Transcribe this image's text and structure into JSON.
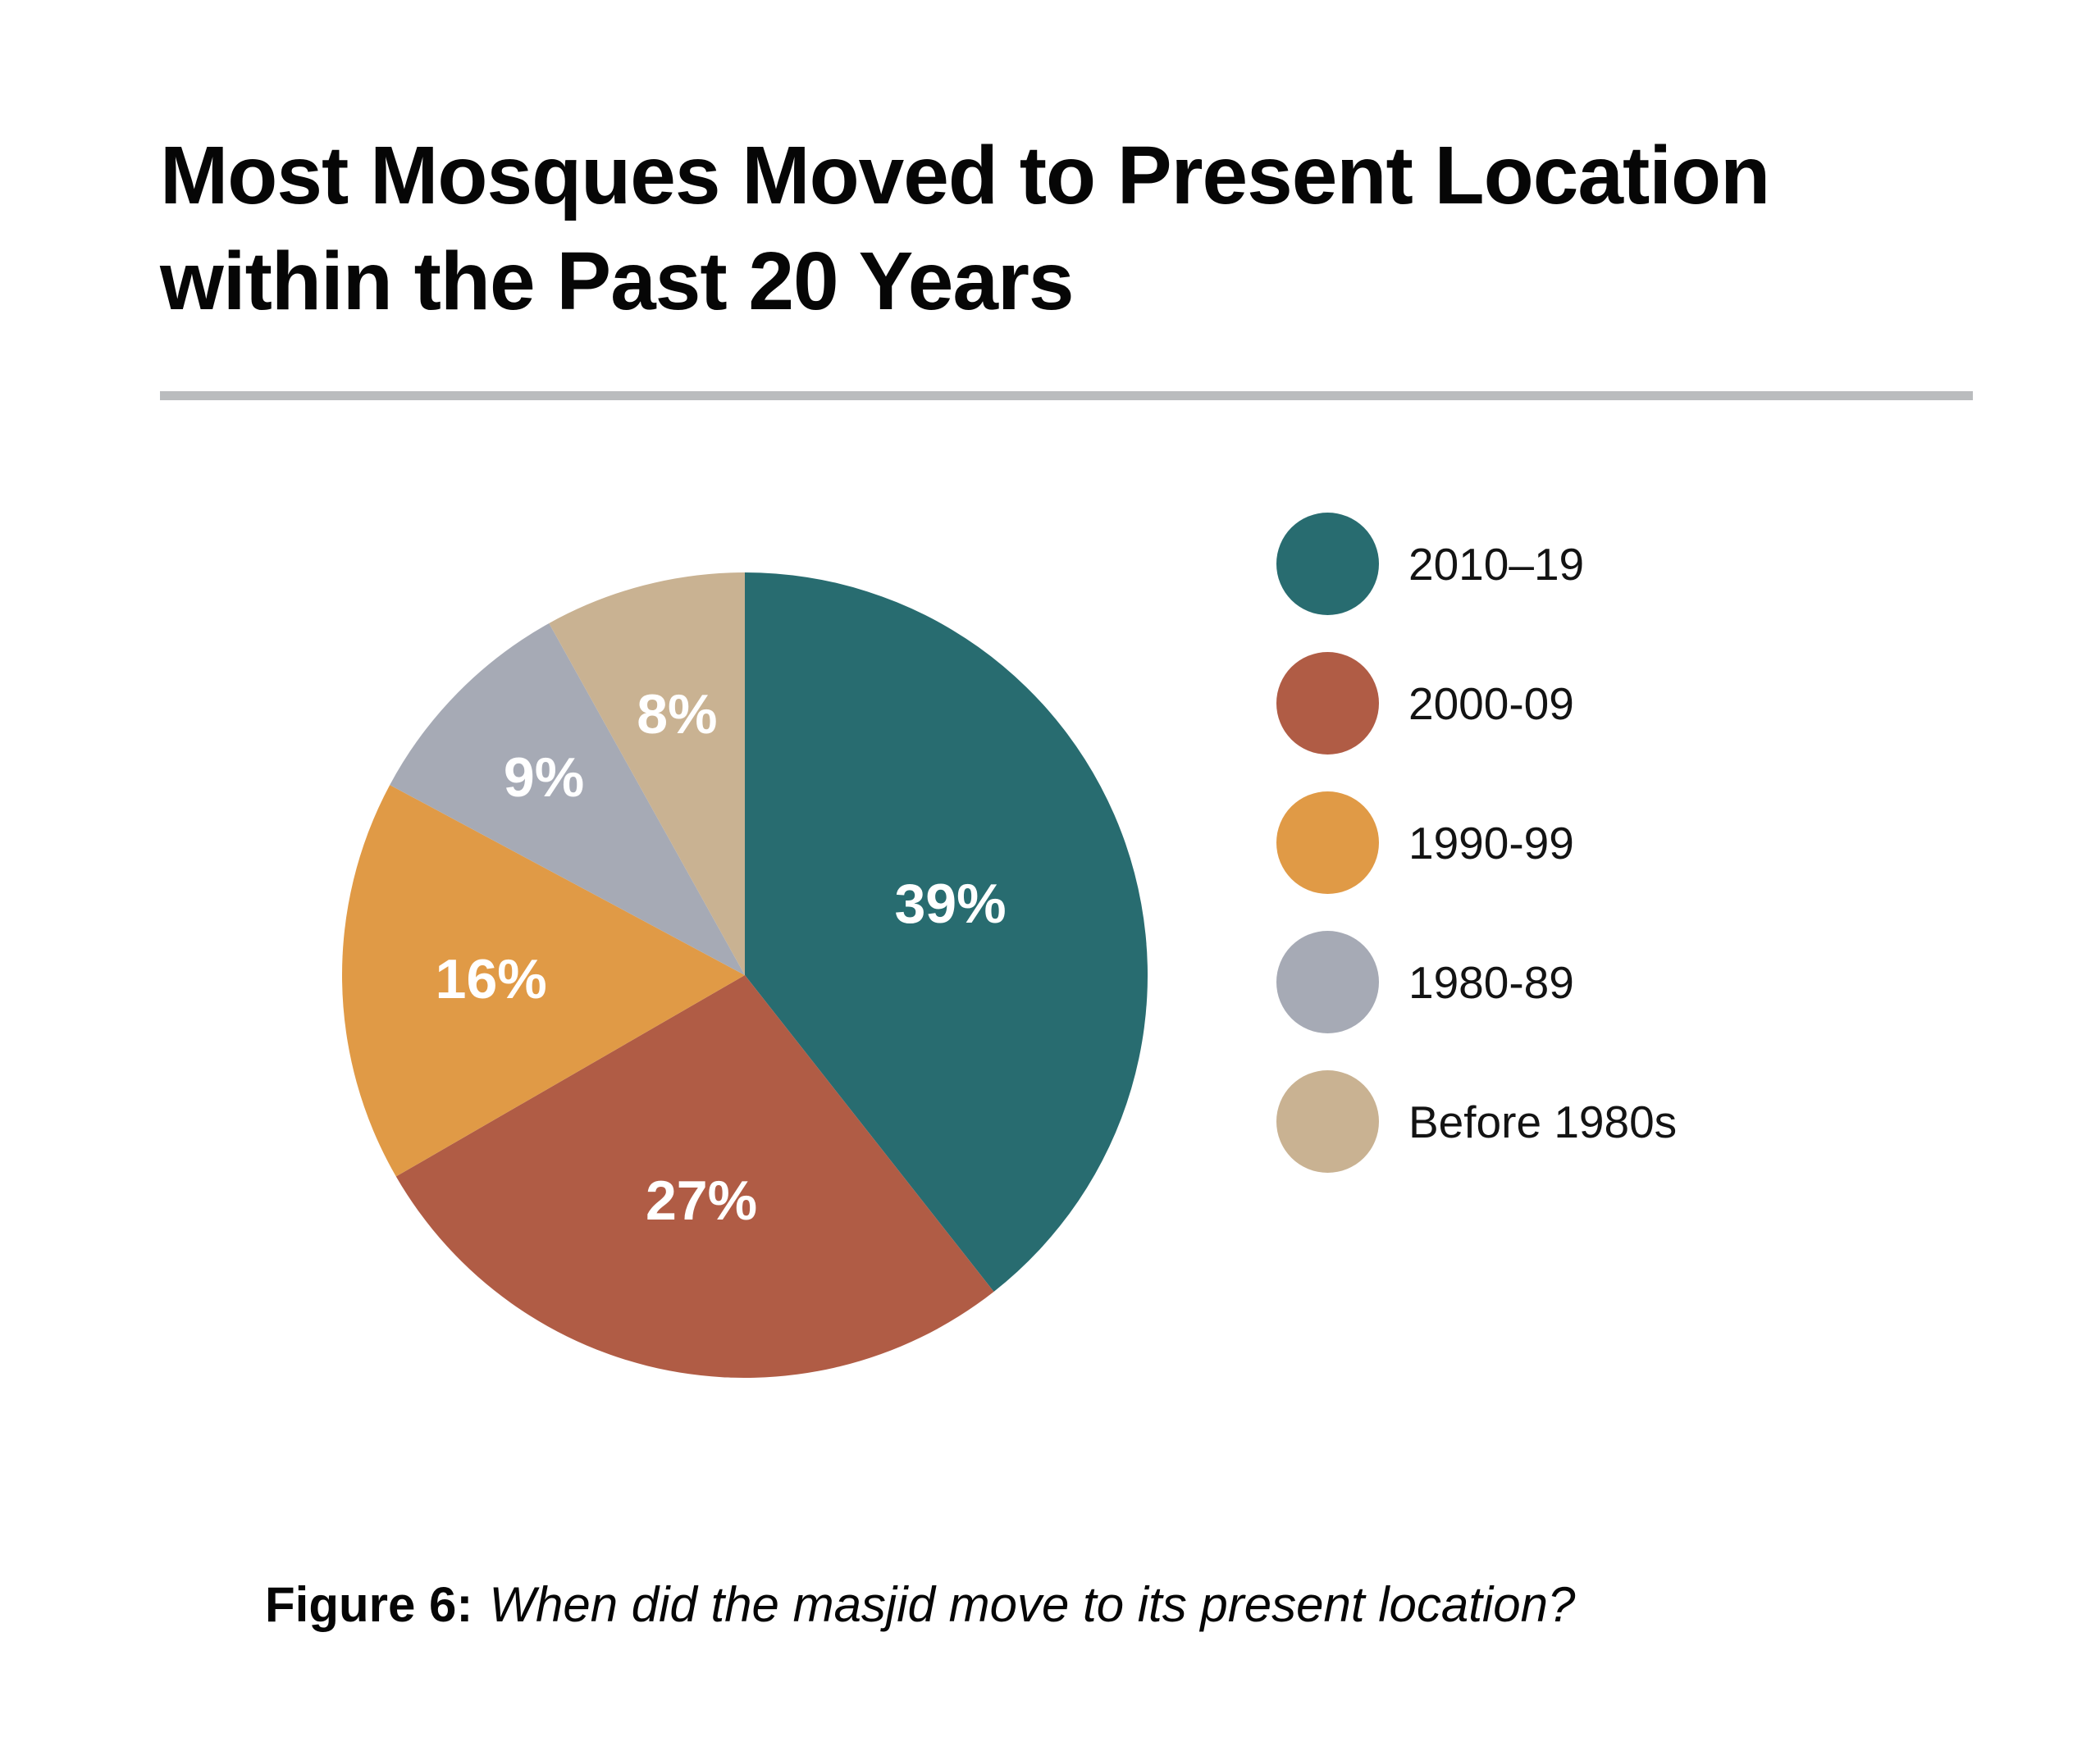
{
  "header": {
    "title": "Most Mosques Moved to Present Location\nwithin the Past 20 Years"
  },
  "caption": {
    "prefix": "Figure 6:",
    "text": "When did the masjid move to its present location?"
  },
  "chart_data": {
    "type": "pie",
    "title": "Most Mosques Moved to Present Location within the Past 20 Years",
    "caption": "Figure 6: When did the masjid move to its present location?",
    "categories": [
      "2010–19",
      "2000-09",
      "1990-99",
      "1980-89",
      "Before 1980s"
    ],
    "values": [
      39,
      27,
      16,
      9,
      8
    ],
    "unit": "%",
    "data_labels": [
      "39%",
      "27%",
      "16%",
      "9%",
      "8%"
    ],
    "colors": [
      "#286c70",
      "#b05c45",
      "#e09a46",
      "#a6aab5",
      "#c9b292"
    ],
    "label_color": "#ffffff",
    "start_angle_deg": 0,
    "direction": "clockwise",
    "legend_position": "right",
    "label_radius_fraction": [
      0.54,
      0.57,
      0.63,
      0.7,
      0.67
    ]
  },
  "colors": {
    "divider": "#babcbe",
    "background": "#ffffff"
  }
}
